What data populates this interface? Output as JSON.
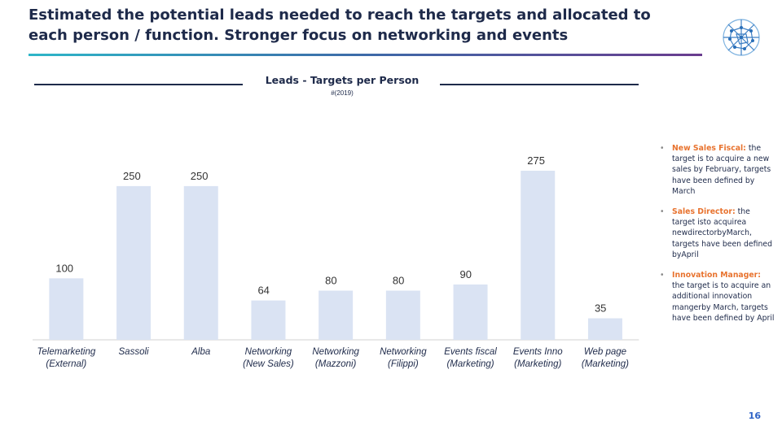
{
  "slide": {
    "title": "Estimated the potential leads needed to reach the targets and allocated to each person / function. Stronger focus on networking and events",
    "page_number": "16"
  },
  "colors": {
    "bar": "#dae3f3",
    "text": "#1e2a4a",
    "accent": "#e8732f",
    "page_number": "#2f63c6"
  },
  "chart_data": {
    "type": "bar",
    "title": "Leads - Targets per Person",
    "subtitle": "#(2019)",
    "categories": [
      [
        "Telemarketing",
        "(External)"
      ],
      [
        "Sassoli"
      ],
      [
        "Alba"
      ],
      [
        "Networking",
        "(New Sales)"
      ],
      [
        "Networking",
        "(Mazzoni)"
      ],
      [
        "Networking",
        "(Filippi)"
      ],
      [
        "Events fiscal",
        "(Marketing)"
      ],
      [
        "Events Inno",
        "(Marketing)"
      ],
      [
        "Web page",
        "(Marketing)"
      ]
    ],
    "values": [
      100,
      250,
      250,
      64,
      80,
      80,
      90,
      275,
      35
    ],
    "ylim": [
      0,
      275
    ],
    "xlabel": "",
    "ylabel": "",
    "grid": false,
    "legend": "none"
  },
  "notes": [
    {
      "lead": "New Sales Fiscal:",
      "text": " the target is to acquire a new sales by February, targets have been defined by March"
    },
    {
      "lead": "Sales Director:",
      "text": " the target isto acquirea newdirectorbyMarch, targets have been defined byApril"
    },
    {
      "lead": "Innovation Manager:",
      "text": " the target is to acquire an additional innovation mangerby March, targets have been defined by April"
    }
  ]
}
